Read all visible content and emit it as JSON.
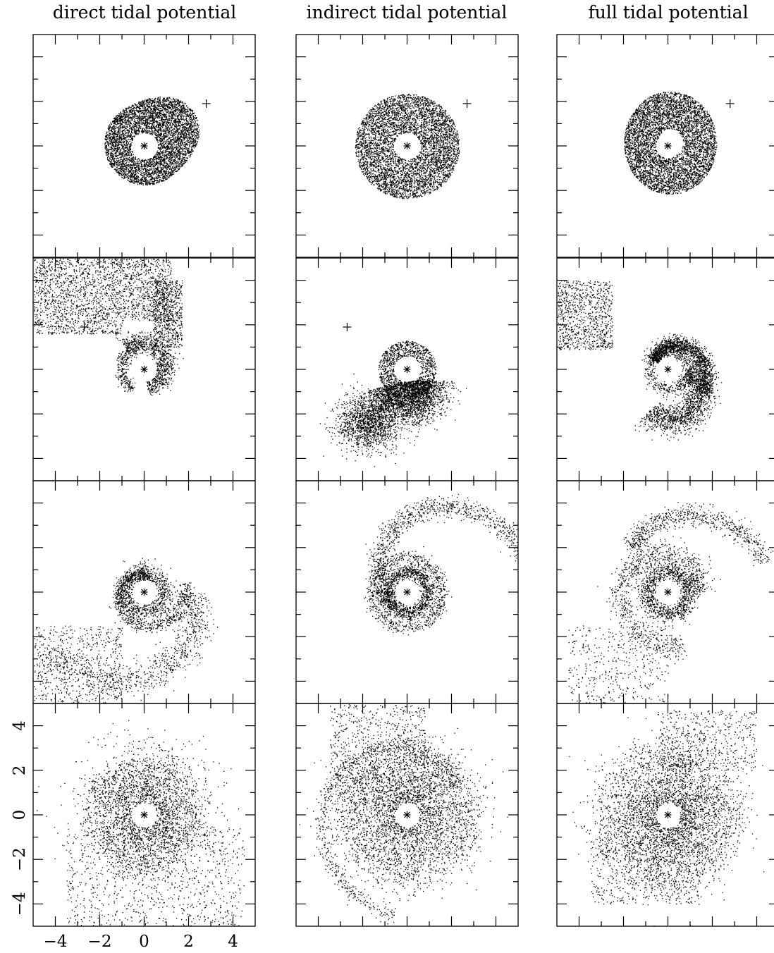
{
  "chart_data": {
    "type": "scatter",
    "columns": [
      {
        "id": "direct",
        "title": "direct tidal potential"
      },
      {
        "id": "indirect",
        "title": "indirect tidal potential"
      },
      {
        "id": "full",
        "title": "full tidal potential"
      }
    ],
    "rows": 4,
    "xlim": [
      -5,
      5
    ],
    "ylim": [
      -5,
      5
    ],
    "xticks": [
      -4,
      -2,
      0,
      2,
      4
    ],
    "yticks": [
      -4,
      -2,
      0,
      2,
      4
    ],
    "xtick_labels": [
      "−4",
      "−2",
      "0",
      "2",
      "4"
    ],
    "ytick_labels": [
      "−4",
      "−2",
      "0",
      "2",
      "4"
    ],
    "minor_tick_step": 1,
    "central_star": [
      0,
      0
    ],
    "perturber_positions": {
      "direct": [
        [
          2.8,
          1.9
        ],
        [
          -2.7,
          1.9
        ],
        null,
        null
      ],
      "indirect": [
        [
          2.7,
          1.9
        ],
        [
          -2.7,
          1.9
        ],
        null,
        null
      ],
      "full": [
        [
          2.8,
          1.9
        ],
        null,
        null,
        null
      ]
    },
    "grid": false,
    "legend": "none"
  }
}
